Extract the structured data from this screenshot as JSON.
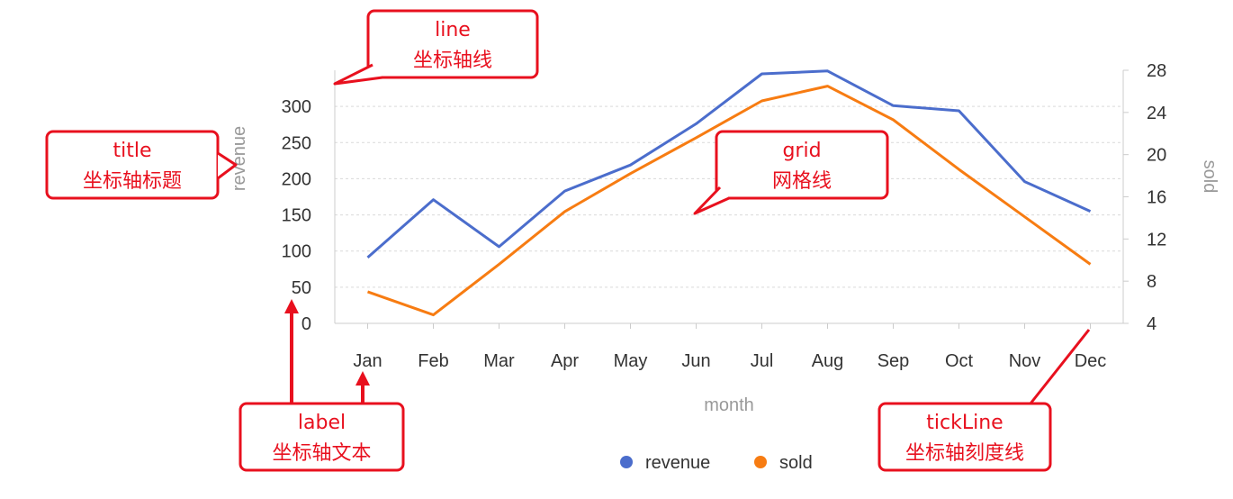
{
  "chart_data": {
    "type": "line",
    "categories": [
      "Jan",
      "Feb",
      "Mar",
      "Apr",
      "May",
      "Jun",
      "Jul",
      "Aug",
      "Sep",
      "Oct",
      "Nov",
      "Dec"
    ],
    "xlabel": "month",
    "series": [
      {
        "name": "revenue",
        "axis": "left",
        "color": "#4b6dcc",
        "values": [
          91,
          171,
          106,
          183,
          219,
          276,
          345,
          349,
          301,
          294,
          196,
          155
        ]
      },
      {
        "name": "sold",
        "axis": "right",
        "color": "#f77c12",
        "values": [
          7,
          4.8,
          9.6,
          14.6,
          18.2,
          21.6,
          25.1,
          26.5,
          23.3,
          18.6,
          14.1,
          9.6
        ]
      }
    ],
    "y_left": {
      "label": "revenue",
      "ylim": [
        0,
        350
      ],
      "ticks": [
        "0",
        "50",
        "100",
        "150",
        "200",
        "250",
        "300"
      ]
    },
    "y_right": {
      "label": "sold",
      "ylim": [
        4,
        28
      ],
      "ticks": [
        "4",
        "8",
        "12",
        "16",
        "20",
        "24",
        "28"
      ]
    },
    "grid": true,
    "legend": {
      "position": "bottom",
      "items": [
        {
          "label": "revenue",
          "color": "#4b6dcc"
        },
        {
          "label": "sold",
          "color": "#f77c12"
        }
      ]
    }
  },
  "annotations": [
    {
      "id": "line",
      "title": "line",
      "subtitle": "坐标轴线"
    },
    {
      "id": "title",
      "title": "title",
      "subtitle": "坐标轴标题"
    },
    {
      "id": "grid",
      "title": "grid",
      "subtitle": "网格线"
    },
    {
      "id": "label",
      "title": "label",
      "subtitle": "坐标轴文本"
    },
    {
      "id": "tickline",
      "title": "tickLine",
      "subtitle": "坐标轴刻度线"
    }
  ],
  "colors": {
    "callout": "#e8101e",
    "grid": "#d9d9d9",
    "axis": "#cccccc"
  }
}
